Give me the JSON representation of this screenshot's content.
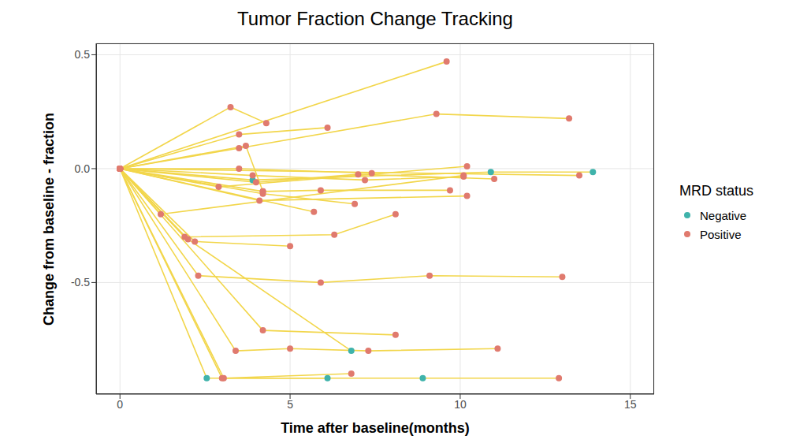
{
  "chart_data": {
    "type": "line",
    "title": "Tumor Fraction Change Tracking",
    "x_label": "Time after baseline(months)",
    "y_label": "Change from baseline - fraction",
    "legend_title": "MRD status",
    "color": "#F2D64B",
    "marker": "circle",
    "grid": true,
    "xlim": [
      -0.7,
      15.7
    ],
    "xticks": [
      0,
      5,
      10,
      15
    ],
    "ylim": [
      -0.99,
      0.55
    ],
    "yticks": [
      {
        "value": -0.5,
        "label": "-0.5"
      },
      {
        "value": 0,
        "label": "0.0"
      },
      {
        "value": 0.5,
        "label": "0.5"
      }
    ],
    "groups": [
      {
        "name": "Negative",
        "color": "#3FB3AB"
      },
      {
        "name": "Positive",
        "color": "#E07A6E"
      }
    ],
    "series": [
      {
        "x": [
          0,
          9.6
        ],
        "y": [
          0,
          0.47
        ],
        "status": [
          "Positive",
          "Positive"
        ]
      },
      {
        "x": [
          0,
          3.25,
          4.3
        ],
        "y": [
          0,
          0.27,
          0.2
        ],
        "status": [
          "Positive",
          "Positive",
          "Positive"
        ]
      },
      {
        "x": [
          0,
          3.5,
          6.1
        ],
        "y": [
          0,
          0.15,
          0.18
        ],
        "status": [
          "Positive",
          "Positive",
          "Positive"
        ]
      },
      {
        "x": [
          0,
          3.5,
          9.3,
          13.2
        ],
        "y": [
          0,
          0.09,
          0.24,
          0.22
        ],
        "status": [
          "Positive",
          "Positive",
          "Positive",
          "Positive"
        ]
      },
      {
        "x": [
          0,
          3.7,
          4.2
        ],
        "y": [
          0,
          0.1,
          -0.1
        ],
        "status": [
          "Positive",
          "Positive",
          "Positive"
        ]
      },
      {
        "x": [
          0,
          3.5,
          7.4
        ],
        "y": [
          0,
          0.0,
          -0.02
        ],
        "status": [
          "Positive",
          "Positive",
          "Positive"
        ]
      },
      {
        "x": [
          0,
          3.9,
          10.9,
          13.9
        ],
        "y": [
          0,
          -0.05,
          -0.015,
          -0.015
        ],
        "status": [
          "Positive",
          "Negative",
          "Negative",
          "Negative"
        ]
      },
      {
        "x": [
          0,
          2.9,
          10.2
        ],
        "y": [
          0,
          -0.08,
          0.01
        ],
        "status": [
          "Positive",
          "Positive",
          "Positive"
        ]
      },
      {
        "x": [
          0,
          3.9,
          7.2,
          10.1
        ],
        "y": [
          0,
          -0.03,
          -0.05,
          -0.035
        ],
        "status": [
          "Positive",
          "Positive",
          "Positive",
          "Positive"
        ]
      },
      {
        "x": [
          0,
          4.0,
          7.0,
          11.0
        ],
        "y": [
          0,
          -0.06,
          -0.025,
          -0.045
        ],
        "status": [
          "Positive",
          "Positive",
          "Positive",
          "Positive"
        ]
      },
      {
        "x": [
          0,
          4.2,
          5.9,
          9.7
        ],
        "y": [
          0,
          -0.1,
          -0.095,
          -0.095
        ],
        "status": [
          "Positive",
          "Positive",
          "Positive",
          "Positive"
        ]
      },
      {
        "x": [
          0,
          4.1,
          10.2
        ],
        "y": [
          0,
          -0.14,
          -0.12
        ],
        "status": [
          "Positive",
          "Positive",
          "Positive"
        ]
      },
      {
        "x": [
          0,
          4.2,
          6.9
        ],
        "y": [
          0,
          -0.11,
          -0.155
        ],
        "status": [
          "Positive",
          "Positive",
          "Positive"
        ]
      },
      {
        "x": [
          0,
          5.7
        ],
        "y": [
          0,
          -0.19
        ],
        "status": [
          "Positive",
          "Positive"
        ]
      },
      {
        "x": [
          0,
          13.5
        ],
        "y": [
          0,
          -0.03
        ],
        "status": [
          "Positive",
          "Positive"
        ]
      },
      {
        "x": [
          0,
          1.2,
          10.1
        ],
        "y": [
          0,
          -0.2,
          -0.03
        ],
        "status": [
          "Positive",
          "Positive",
          "Positive"
        ]
      },
      {
        "x": [
          0,
          1.9,
          6.3,
          8.1
        ],
        "y": [
          0,
          -0.3,
          -0.29,
          -0.2
        ],
        "status": [
          "Positive",
          "Positive",
          "Positive",
          "Positive"
        ]
      },
      {
        "x": [
          0,
          2.2,
          5.0
        ],
        "y": [
          0,
          -0.32,
          -0.34
        ],
        "status": [
          "Positive",
          "Positive",
          "Positive"
        ]
      },
      {
        "x": [
          0,
          2.3,
          5.9,
          9.1,
          13.0
        ],
        "y": [
          0,
          -0.47,
          -0.5,
          -0.47,
          -0.475
        ],
        "status": [
          "Positive",
          "Positive",
          "Positive",
          "Positive",
          "Positive"
        ]
      },
      {
        "x": [
          0,
          4.2,
          8.1
        ],
        "y": [
          0,
          -0.71,
          -0.73
        ],
        "status": [
          "Positive",
          "Positive",
          "Positive"
        ]
      },
      {
        "x": [
          0,
          3.4,
          5.0,
          7.3,
          11.1
        ],
        "y": [
          0,
          -0.8,
          -0.79,
          -0.8,
          -0.79
        ],
        "status": [
          "Positive",
          "Positive",
          "Positive",
          "Positive",
          "Positive"
        ]
      },
      {
        "x": [
          0,
          2.0,
          6.8
        ],
        "y": [
          0,
          -0.31,
          -0.8
        ],
        "status": [
          "Positive",
          "Positive",
          "Negative"
        ]
      },
      {
        "x": [
          0,
          2.55,
          6.1
        ],
        "y": [
          0,
          -0.92,
          -0.92
        ],
        "status": [
          "Positive",
          "Negative",
          "Negative"
        ]
      },
      {
        "x": [
          0,
          3.05,
          6.8
        ],
        "y": [
          0,
          -0.92,
          -0.9
        ],
        "status": [
          "Positive",
          "Positive",
          "Positive"
        ]
      },
      {
        "x": [
          0,
          3.0,
          8.9,
          12.9
        ],
        "y": [
          0,
          -0.92,
          -0.92,
          -0.92
        ],
        "status": [
          "Positive",
          "Positive",
          "Negative",
          "Positive"
        ]
      }
    ]
  }
}
